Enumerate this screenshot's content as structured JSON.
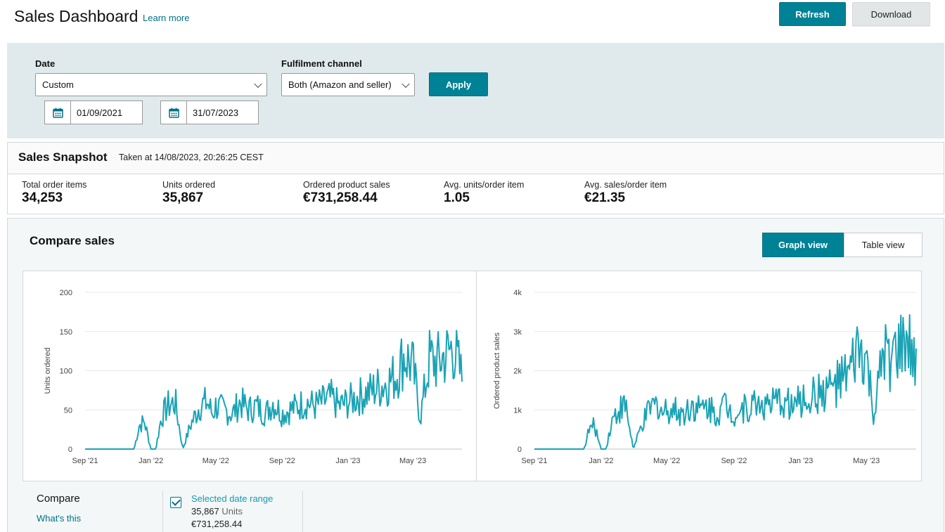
{
  "header": {
    "title": "Sales Dashboard",
    "learn_more": "Learn more",
    "refresh_label": "Refresh",
    "download_label": "Download"
  },
  "filters": {
    "date_label": "Date",
    "date_value": "Custom",
    "channel_label": "Fulfilment channel",
    "channel_value": "Both (Amazon and seller)",
    "apply_label": "Apply",
    "start_date": "01/09/2021",
    "end_date": "31/07/2023"
  },
  "snapshot": {
    "title": "Sales Snapshot",
    "taken": "Taken at 14/08/2023, 20:26:25 CEST",
    "metrics": [
      {
        "label": "Total order items",
        "value": "34,253"
      },
      {
        "label": "Units ordered",
        "value": "35,867"
      },
      {
        "label": "Ordered product sales",
        "value": "€731,258.44"
      },
      {
        "label": "Avg. units/order item",
        "value": "1.05"
      },
      {
        "label": "Avg. sales/order item",
        "value": "€21.35"
      }
    ]
  },
  "compare": {
    "title": "Compare sales",
    "graph_view": "Graph view",
    "table_view": "Table view",
    "compare_label": "Compare",
    "whats_this": "What's this",
    "legend": {
      "title": "Selected date range",
      "units_value": "35,867",
      "units_word": "Units",
      "sales_value": "€731,258.44"
    }
  },
  "colors": {
    "accent": "#008296",
    "line": "#1aa3b5",
    "link": "#007185"
  },
  "chart_data": [
    {
      "type": "line",
      "ylabel": "Units ordered",
      "xlabel": "",
      "x_ticks": [
        "Sep '21",
        "Jan '22",
        "May '22",
        "Sep '22",
        "Jan '23",
        "May '23"
      ],
      "y_ticks": [
        "0",
        "50",
        "100",
        "150",
        "200"
      ],
      "ylim": [
        0,
        200
      ],
      "xlim": [
        "2021-09-01",
        "2023-07-31"
      ],
      "grid": true,
      "series": [
        {
          "x": [
            "2021-09-01",
            "2021-12-01",
            "2021-12-10",
            "2021-12-20",
            "2022-01-01",
            "2022-01-10",
            "2022-01-20",
            "2022-02-01",
            "2022-02-15",
            "2022-03-01",
            "2022-03-15",
            "2022-04-01",
            "2022-04-15",
            "2022-04-25",
            "2022-05-01",
            "2022-05-15",
            "2022-06-01",
            "2022-06-15",
            "2022-07-01",
            "2022-07-15",
            "2022-08-01",
            "2022-08-15",
            "2022-09-01",
            "2022-09-15",
            "2022-10-01",
            "2022-10-15",
            "2022-11-01",
            "2022-11-15",
            "2022-12-01",
            "2022-12-15",
            "2023-01-01",
            "2023-01-15",
            "2023-02-01",
            "2023-02-15",
            "2023-03-01",
            "2023-03-15",
            "2023-04-01",
            "2023-04-15",
            "2023-05-01",
            "2023-05-15",
            "2023-06-01",
            "2023-06-15",
            "2023-07-01",
            "2023-07-15",
            "2023-07-31"
          ],
          "y": [
            0,
            0,
            30,
            35,
            0,
            0,
            40,
            55,
            60,
            0,
            30,
            55,
            60,
            45,
            55,
            50,
            45,
            60,
            50,
            55,
            45,
            60,
            45,
            50,
            55,
            60,
            55,
            60,
            65,
            55,
            60,
            65,
            70,
            75,
            80,
            85,
            95,
            120,
            105,
            40,
            115,
            110,
            120,
            130,
            90
          ]
        }
      ]
    },
    {
      "type": "line",
      "ylabel": "Ordered product sales",
      "xlabel": "",
      "x_ticks": [
        "Sep '21",
        "Jan '22",
        "May '22",
        "Sep '22",
        "Jan '23",
        "May '23"
      ],
      "y_ticks": [
        "0",
        "1k",
        "2k",
        "3k",
        "4k"
      ],
      "ylim": [
        0,
        4000
      ],
      "xlim": [
        "2021-09-01",
        "2023-07-31"
      ],
      "grid": true,
      "series": [
        {
          "x": [
            "2021-09-01",
            "2021-12-01",
            "2021-12-10",
            "2021-12-20",
            "2022-01-01",
            "2022-01-10",
            "2022-01-20",
            "2022-02-01",
            "2022-02-15",
            "2022-03-01",
            "2022-03-15",
            "2022-04-01",
            "2022-04-15",
            "2022-04-25",
            "2022-05-01",
            "2022-05-15",
            "2022-06-01",
            "2022-06-15",
            "2022-07-01",
            "2022-07-15",
            "2022-08-01",
            "2022-08-15",
            "2022-09-01",
            "2022-09-15",
            "2022-10-01",
            "2022-10-15",
            "2022-11-01",
            "2022-11-15",
            "2022-12-01",
            "2022-12-15",
            "2023-01-01",
            "2023-01-15",
            "2023-02-01",
            "2023-02-15",
            "2023-03-01",
            "2023-03-15",
            "2023-04-01",
            "2023-04-15",
            "2023-05-01",
            "2023-05-15",
            "2023-06-01",
            "2023-06-15",
            "2023-07-01",
            "2023-07-15",
            "2023-07-31"
          ],
          "y": [
            0,
            0,
            500,
            600,
            0,
            0,
            700,
            1000,
            1100,
            0,
            550,
            1050,
            1150,
            900,
            1050,
            1000,
            900,
            1150,
            1000,
            1100,
            900,
            1150,
            900,
            1000,
            1100,
            1200,
            1100,
            1150,
            1250,
            1100,
            1200,
            1300,
            1400,
            1500,
            1600,
            1700,
            1900,
            2500,
            2200,
            800,
            2400,
            2300,
            2500,
            2700,
            1900
          ]
        }
      ]
    }
  ]
}
